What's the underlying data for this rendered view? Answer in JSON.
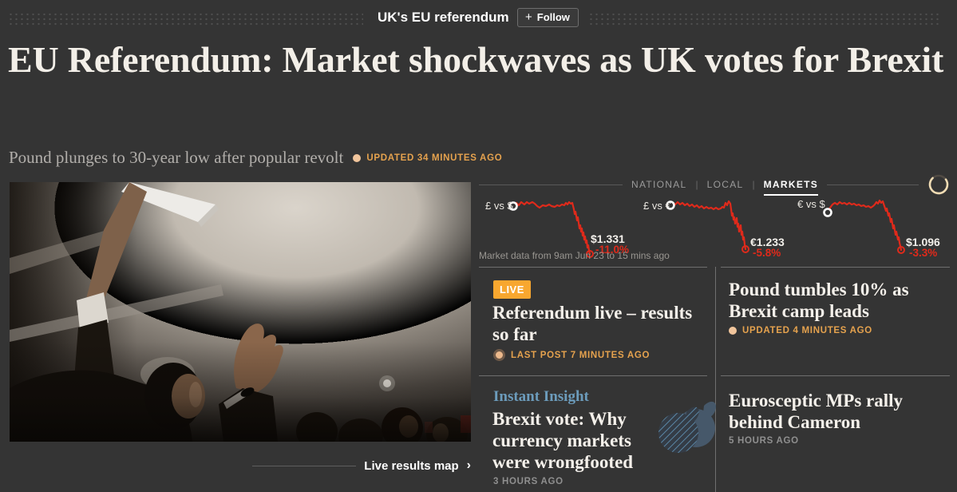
{
  "colors": {
    "accent_orange": "#E5A24E",
    "live_badge": "#F8A72F",
    "chart_red": "#DF2A1B",
    "insight_blue": "#6C9CBC"
  },
  "header": {
    "topic": "UK's EU referendum",
    "follow_icon": "+",
    "follow_label": "Follow"
  },
  "article": {
    "headline": "EU Referendum: Market shockwaves as UK votes for Brexit",
    "standfirst": "Pound plunges to 30-year low after popular revolt",
    "updated": "UPDATED 34 MINUTES AGO"
  },
  "photo_link": {
    "label": "Live results map",
    "chevron": "›"
  },
  "markets": {
    "tabs": [
      {
        "label": "NATIONAL",
        "active": false
      },
      {
        "label": "LOCAL",
        "active": false
      },
      {
        "label": "MARKETS",
        "active": true
      }
    ],
    "tab_separator": "|",
    "caption": "Market data from 9am Jun 23 to 15 mins ago",
    "chart_data": {
      "type": "line",
      "series": [
        {
          "name": "£ vs $",
          "last": "$1.331",
          "change": "-11.0%",
          "points": [
            [
              43,
              18
            ],
            [
              47,
              14
            ],
            [
              50,
              17
            ],
            [
              53,
              13
            ],
            [
              57,
              16
            ],
            [
              60,
              13
            ],
            [
              63,
              15
            ],
            [
              67,
              13
            ],
            [
              70,
              15
            ],
            [
              73,
              18
            ],
            [
              76,
              20
            ],
            [
              80,
              17
            ],
            [
              84,
              18
            ],
            [
              88,
              16
            ],
            [
              91,
              18
            ],
            [
              95,
              19
            ],
            [
              98,
              17
            ],
            [
              101,
              18
            ],
            [
              104,
              16
            ],
            [
              107,
              17
            ],
            [
              109,
              14
            ],
            [
              111,
              16
            ],
            [
              113,
              13
            ],
            [
              115,
              15
            ],
            [
              117,
              14
            ],
            [
              119,
              22
            ],
            [
              120,
              28
            ],
            [
              121,
              25
            ],
            [
              123,
              36
            ],
            [
              124,
              32
            ],
            [
              126,
              46
            ],
            [
              127,
              42
            ],
            [
              128,
              50
            ],
            [
              129,
              46
            ],
            [
              130,
              55
            ],
            [
              131,
              51
            ],
            [
              132,
              60
            ],
            [
              133,
              56
            ],
            [
              134,
              64
            ],
            [
              135,
              61
            ],
            [
              136,
              70
            ],
            [
              137,
              67
            ],
            [
              138,
              74
            ],
            [
              139,
              78
            ]
          ]
        },
        {
          "name": "£ vs €",
          "last": "€1.233",
          "change": "-5.8%",
          "points": [
            [
              40,
              17
            ],
            [
              43,
              14
            ],
            [
              46,
              16
            ],
            [
              49,
              13
            ],
            [
              52,
              16
            ],
            [
              55,
              14
            ],
            [
              58,
              17
            ],
            [
              61,
              15
            ],
            [
              64,
              18
            ],
            [
              67,
              16
            ],
            [
              70,
              19
            ],
            [
              73,
              17
            ],
            [
              76,
              20
            ],
            [
              79,
              18
            ],
            [
              82,
              21
            ],
            [
              85,
              19
            ],
            [
              88,
              21
            ],
            [
              91,
              20
            ],
            [
              94,
              22
            ],
            [
              97,
              20
            ],
            [
              100,
              22
            ],
            [
              103,
              21
            ],
            [
              105,
              19
            ],
            [
              107,
              20
            ],
            [
              109,
              14
            ],
            [
              111,
              17
            ],
            [
              113,
              12
            ],
            [
              115,
              15
            ],
            [
              116,
              22
            ],
            [
              117,
              30
            ],
            [
              118,
              27
            ],
            [
              119,
              35
            ],
            [
              120,
              32
            ],
            [
              121,
              40
            ],
            [
              122,
              37
            ],
            [
              123,
              33
            ],
            [
              124,
              44
            ],
            [
              125,
              40
            ],
            [
              126,
              50
            ],
            [
              127,
              46
            ],
            [
              128,
              42
            ],
            [
              129,
              54
            ],
            [
              130,
              50
            ],
            [
              131,
              60
            ],
            [
              132,
              57
            ],
            [
              133,
              66
            ],
            [
              134,
              72
            ]
          ]
        },
        {
          "name": "€ vs $",
          "last": "$1.096",
          "change": "-3.3%",
          "points": [
            [
              42,
              26
            ],
            [
              45,
              20
            ],
            [
              48,
              16
            ],
            [
              51,
              14
            ],
            [
              54,
              16
            ],
            [
              57,
              13
            ],
            [
              60,
              15
            ],
            [
              63,
              14
            ],
            [
              66,
              16
            ],
            [
              69,
              14
            ],
            [
              72,
              16
            ],
            [
              75,
              15
            ],
            [
              78,
              17
            ],
            [
              81,
              16
            ],
            [
              84,
              18
            ],
            [
              87,
              17
            ],
            [
              90,
              19
            ],
            [
              93,
              18
            ],
            [
              96,
              20
            ],
            [
              99,
              18
            ],
            [
              101,
              16
            ],
            [
              103,
              13
            ],
            [
              105,
              15
            ],
            [
              107,
              11
            ],
            [
              109,
              14
            ],
            [
              111,
              12
            ],
            [
              113,
              18
            ],
            [
              115,
              24
            ],
            [
              116,
              21
            ],
            [
              118,
              30
            ],
            [
              119,
              27
            ],
            [
              121,
              38
            ],
            [
              122,
              34
            ],
            [
              124,
              46
            ],
            [
              125,
              42
            ],
            [
              127,
              54
            ],
            [
              128,
              50
            ],
            [
              130,
              60
            ],
            [
              131,
              57
            ],
            [
              132,
              64
            ],
            [
              133,
              68
            ],
            [
              134,
              73
            ]
          ]
        }
      ]
    }
  },
  "stories": {
    "live": {
      "badge": "LIVE",
      "headline": "Referendum live – results so far",
      "meta": "LAST POST 7 MINUTES AGO"
    },
    "insight": {
      "kicker": "Instant Insight",
      "headline": "Brexit vote: Why currency markets were wrongfooted",
      "meta": "3 HOURS AGO"
    },
    "pound": {
      "headline": "Pound tumbles 10% as Brexit camp leads",
      "meta": "UPDATED 4 MINUTES AGO"
    },
    "eurosceptic": {
      "headline": "Eurosceptic MPs rally behind Cameron",
      "meta": "5 HOURS AGO"
    }
  }
}
